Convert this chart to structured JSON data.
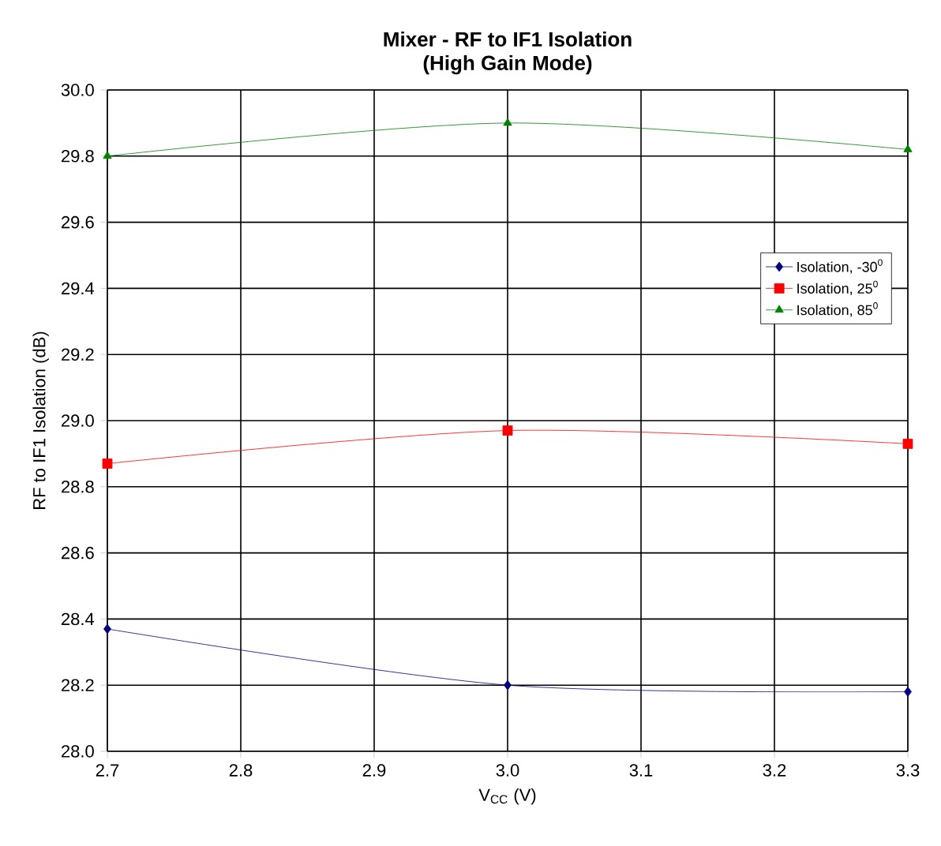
{
  "chart_data": {
    "type": "line",
    "title": "Mixer - RF to IF1 Isolation",
    "subtitle": "(High Gain Mode)",
    "xlabel": "V$_{CC}$ (V)",
    "ylabel": "RF to IF1 Isolation (dB)",
    "x": [
      2.7,
      3.0,
      3.3
    ],
    "series": [
      {
        "name": "Isolation, -30$^{0}$",
        "color": "#000080",
        "marker": "diamond",
        "values": [
          28.37,
          28.2,
          28.18
        ]
      },
      {
        "name": "Isolation, 25$^{0}$",
        "color": "#ff0000",
        "marker": "square",
        "values": [
          28.87,
          28.97,
          28.93
        ]
      },
      {
        "name": "Isolation, 85$^{0}$",
        "color": "#008000",
        "marker": "triangle",
        "values": [
          29.8,
          29.9,
          29.82
        ]
      }
    ],
    "xlim": [
      2.7,
      3.3
    ],
    "ylim": [
      28.0,
      30.0
    ],
    "xticks": [
      {
        "value": 2.7,
        "label": "2.7"
      },
      {
        "value": 2.8,
        "label": "2.8"
      },
      {
        "value": 2.9,
        "label": "2.9"
      },
      {
        "value": 3.0,
        "label": "3.0"
      },
      {
        "value": 3.1,
        "label": "3.1"
      },
      {
        "value": 3.2,
        "label": "3.2"
      },
      {
        "value": 3.3,
        "label": "3.3"
      }
    ],
    "yticks": [
      {
        "value": 28.0,
        "label": "28.0"
      },
      {
        "value": 28.2,
        "label": "28.2"
      },
      {
        "value": 28.4,
        "label": "28.4"
      },
      {
        "value": 28.6,
        "label": "28.6"
      },
      {
        "value": 28.8,
        "label": "28.8"
      },
      {
        "value": 29.0,
        "label": "29.0"
      },
      {
        "value": 29.2,
        "label": "29.2"
      },
      {
        "value": 29.4,
        "label": "29.4"
      },
      {
        "value": 29.6,
        "label": "29.6"
      },
      {
        "value": 29.8,
        "label": "29.8"
      },
      {
        "value": 30.0,
        "label": "30.0"
      }
    ],
    "grid": true,
    "legend": "right",
    "line_style": "solid"
  }
}
